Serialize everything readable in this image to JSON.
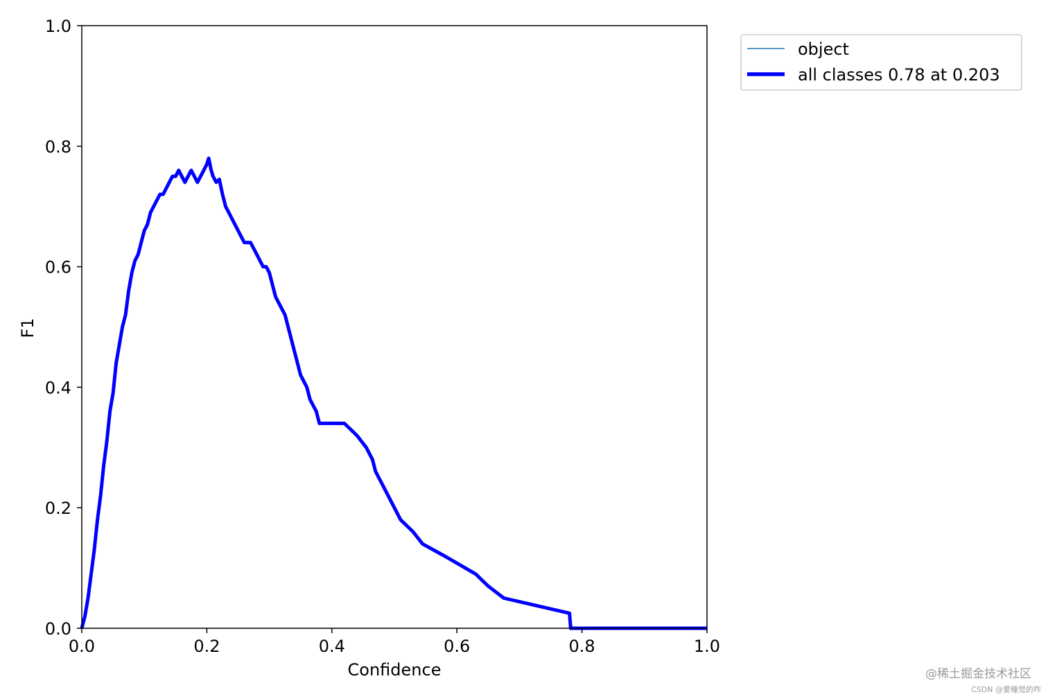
{
  "chart_data": {
    "type": "line",
    "xlabel": "Confidence",
    "ylabel": "F1",
    "xlim": [
      0.0,
      1.0
    ],
    "ylim": [
      0.0,
      1.0
    ],
    "xticks": [
      "0.0",
      "0.2",
      "0.4",
      "0.6",
      "0.8",
      "1.0"
    ],
    "yticks": [
      "0.0",
      "0.2",
      "0.4",
      "0.6",
      "0.8",
      "1.0"
    ],
    "grid": false,
    "legend_position": "outside-top-right",
    "series": [
      {
        "name": "object",
        "color": "#1f77b4",
        "line_style": "thin",
        "x": [
          0.0,
          0.005,
          0.01,
          0.015,
          0.02,
          0.025,
          0.03,
          0.035,
          0.04,
          0.045,
          0.05,
          0.055,
          0.06,
          0.065,
          0.07,
          0.075,
          0.08,
          0.085,
          0.09,
          0.095,
          0.1,
          0.105,
          0.11,
          0.115,
          0.12,
          0.125,
          0.13,
          0.135,
          0.14,
          0.145,
          0.15,
          0.155,
          0.16,
          0.165,
          0.17,
          0.175,
          0.18,
          0.185,
          0.19,
          0.195,
          0.2,
          0.203,
          0.207,
          0.21,
          0.215,
          0.22,
          0.225,
          0.23,
          0.235,
          0.24,
          0.245,
          0.25,
          0.255,
          0.26,
          0.265,
          0.27,
          0.275,
          0.28,
          0.285,
          0.29,
          0.295,
          0.3,
          0.305,
          0.31,
          0.315,
          0.32,
          0.325,
          0.33,
          0.335,
          0.34,
          0.345,
          0.35,
          0.355,
          0.36,
          0.365,
          0.37,
          0.375,
          0.38,
          0.385,
          0.4,
          0.42,
          0.44,
          0.455,
          0.465,
          0.47,
          0.475,
          0.48,
          0.49,
          0.5,
          0.505,
          0.51,
          0.53,
          0.545,
          0.58,
          0.63,
          0.65,
          0.675,
          0.78,
          0.782,
          0.79,
          1.0
        ],
        "y": [
          0.0,
          0.02,
          0.05,
          0.09,
          0.13,
          0.18,
          0.22,
          0.27,
          0.31,
          0.36,
          0.39,
          0.44,
          0.47,
          0.5,
          0.52,
          0.56,
          0.59,
          0.61,
          0.62,
          0.64,
          0.66,
          0.67,
          0.69,
          0.7,
          0.71,
          0.72,
          0.72,
          0.73,
          0.74,
          0.75,
          0.75,
          0.76,
          0.75,
          0.74,
          0.75,
          0.76,
          0.75,
          0.74,
          0.75,
          0.76,
          0.77,
          0.78,
          0.76,
          0.75,
          0.74,
          0.745,
          0.72,
          0.7,
          0.69,
          0.68,
          0.67,
          0.66,
          0.65,
          0.64,
          0.64,
          0.64,
          0.63,
          0.62,
          0.61,
          0.6,
          0.6,
          0.59,
          0.57,
          0.55,
          0.54,
          0.53,
          0.52,
          0.5,
          0.48,
          0.46,
          0.44,
          0.42,
          0.41,
          0.4,
          0.38,
          0.37,
          0.36,
          0.34,
          0.34,
          0.34,
          0.34,
          0.32,
          0.3,
          0.28,
          0.26,
          0.25,
          0.24,
          0.22,
          0.2,
          0.19,
          0.18,
          0.16,
          0.14,
          0.12,
          0.09,
          0.07,
          0.05,
          0.025,
          0.0,
          0.0,
          0.0
        ]
      },
      {
        "name": "all classes 0.78 at 0.203",
        "color": "#0000ff",
        "line_style": "thick",
        "x": [
          0.0,
          0.005,
          0.01,
          0.015,
          0.02,
          0.025,
          0.03,
          0.035,
          0.04,
          0.045,
          0.05,
          0.055,
          0.06,
          0.065,
          0.07,
          0.075,
          0.08,
          0.085,
          0.09,
          0.095,
          0.1,
          0.105,
          0.11,
          0.115,
          0.12,
          0.125,
          0.13,
          0.135,
          0.14,
          0.145,
          0.15,
          0.155,
          0.16,
          0.165,
          0.17,
          0.175,
          0.18,
          0.185,
          0.19,
          0.195,
          0.2,
          0.203,
          0.207,
          0.21,
          0.215,
          0.22,
          0.225,
          0.23,
          0.235,
          0.24,
          0.245,
          0.25,
          0.255,
          0.26,
          0.265,
          0.27,
          0.275,
          0.28,
          0.285,
          0.29,
          0.295,
          0.3,
          0.305,
          0.31,
          0.315,
          0.32,
          0.325,
          0.33,
          0.335,
          0.34,
          0.345,
          0.35,
          0.355,
          0.36,
          0.365,
          0.37,
          0.375,
          0.38,
          0.385,
          0.4,
          0.42,
          0.44,
          0.455,
          0.465,
          0.47,
          0.475,
          0.48,
          0.49,
          0.5,
          0.505,
          0.51,
          0.53,
          0.545,
          0.58,
          0.63,
          0.65,
          0.675,
          0.78,
          0.782,
          0.79,
          1.0
        ],
        "y": [
          0.0,
          0.02,
          0.05,
          0.09,
          0.13,
          0.18,
          0.22,
          0.27,
          0.31,
          0.36,
          0.39,
          0.44,
          0.47,
          0.5,
          0.52,
          0.56,
          0.59,
          0.61,
          0.62,
          0.64,
          0.66,
          0.67,
          0.69,
          0.7,
          0.71,
          0.72,
          0.72,
          0.73,
          0.74,
          0.75,
          0.75,
          0.76,
          0.75,
          0.74,
          0.75,
          0.76,
          0.75,
          0.74,
          0.75,
          0.76,
          0.77,
          0.78,
          0.76,
          0.75,
          0.74,
          0.745,
          0.72,
          0.7,
          0.69,
          0.68,
          0.67,
          0.66,
          0.65,
          0.64,
          0.64,
          0.64,
          0.63,
          0.62,
          0.61,
          0.6,
          0.6,
          0.59,
          0.57,
          0.55,
          0.54,
          0.53,
          0.52,
          0.5,
          0.48,
          0.46,
          0.44,
          0.42,
          0.41,
          0.4,
          0.38,
          0.37,
          0.36,
          0.34,
          0.34,
          0.34,
          0.34,
          0.32,
          0.3,
          0.28,
          0.26,
          0.25,
          0.24,
          0.22,
          0.2,
          0.19,
          0.18,
          0.16,
          0.14,
          0.12,
          0.09,
          0.07,
          0.05,
          0.025,
          0.0,
          0.0,
          0.0
        ]
      }
    ]
  },
  "watermark": {
    "line1": "@稀土掘金技术社区",
    "line2": "CSDN @爱睡觉的咋"
  }
}
